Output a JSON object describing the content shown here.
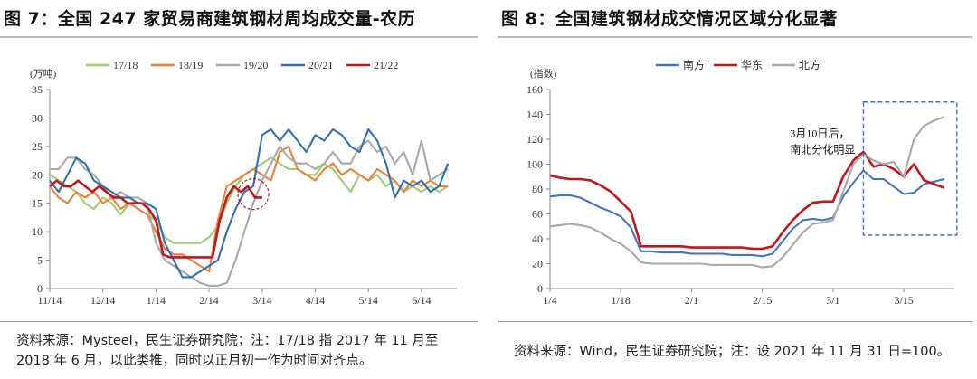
{
  "left": {
    "title": "图 7：全国 247 家贸易商建筑钢材周均成交量-农历",
    "source_line1": "资料来源：Mysteel，民生证券研究院；注：17/18 指 2017 年 11 月至",
    "source_line2": "2018 年 6 月，以此类推，同时以正月初一作为时间对齐点。"
  },
  "right": {
    "title": "图 8：全国建筑钢材成交情况区域分化显著",
    "source": "资料来源：Wind，民生证券研究院；注：设 2021 年 11 月 31 日=100。"
  },
  "chart_data": [
    {
      "type": "line",
      "ylabel": "(万吨)",
      "ylim": [
        0,
        35
      ],
      "yticks": [
        0,
        5,
        10,
        15,
        20,
        25,
        30,
        35
      ],
      "xlim": [
        0,
        230
      ],
      "xticks": [
        {
          "label": "11/14",
          "x": 0
        },
        {
          "label": "12/14",
          "x": 30
        },
        {
          "label": "1/14",
          "x": 60
        },
        {
          "label": "2/14",
          "x": 90
        },
        {
          "label": "3/14",
          "x": 120
        },
        {
          "label": "4/14",
          "x": 150
        },
        {
          "label": "5/14",
          "x": 180
        },
        {
          "label": "6/14",
          "x": 210
        }
      ],
      "legend": "top",
      "annotation": "circle around the 21/22 series near 3/14",
      "series": [
        {
          "name": "17/18",
          "color": "#9bcf6e",
          "x": [
            0,
            5,
            10,
            15,
            20,
            25,
            30,
            35,
            40,
            45,
            50,
            55,
            60,
            65,
            70,
            75,
            80,
            85,
            90,
            95,
            100,
            105,
            110,
            115,
            120,
            125,
            130,
            135,
            140,
            145,
            150,
            155,
            160,
            165,
            170,
            175,
            180,
            185,
            190,
            195,
            200,
            205,
            210,
            215,
            220,
            225
          ],
          "y": [
            20,
            19,
            18,
            17,
            15,
            14,
            16,
            15,
            13,
            15,
            14,
            13,
            12,
            9,
            8,
            8,
            8,
            8,
            9,
            11,
            15,
            18,
            20,
            21,
            22,
            23,
            22,
            21,
            21,
            20,
            20,
            22,
            21,
            19,
            17,
            20,
            19,
            20,
            18,
            19,
            17,
            18,
            17,
            18,
            17,
            18
          ]
        },
        {
          "name": "18/19",
          "color": "#f07f3a",
          "x": [
            0,
            5,
            10,
            15,
            20,
            25,
            30,
            35,
            40,
            45,
            50,
            55,
            60,
            65,
            70,
            75,
            80,
            85,
            90,
            95,
            100,
            105,
            110,
            115,
            120,
            125,
            130,
            135,
            140,
            145,
            150,
            155,
            160,
            165,
            170,
            175,
            180,
            185,
            190,
            195,
            200,
            205,
            210,
            215,
            220,
            225
          ],
          "y": [
            18,
            16,
            15,
            17,
            16,
            17,
            15,
            16,
            14,
            15,
            14,
            13,
            10,
            7,
            6,
            6,
            5,
            4,
            3,
            12,
            18,
            19,
            20,
            21,
            20,
            19,
            24,
            25,
            21,
            20,
            19,
            21,
            22,
            20,
            21,
            20,
            19,
            21,
            20,
            19,
            17,
            19,
            18,
            19,
            18,
            18
          ]
        },
        {
          "name": "19/20",
          "color": "#a9a9a9",
          "x": [
            0,
            5,
            10,
            15,
            20,
            25,
            30,
            35,
            40,
            45,
            50,
            55,
            60,
            65,
            70,
            75,
            80,
            85,
            90,
            95,
            100,
            105,
            110,
            115,
            120,
            125,
            130,
            135,
            140,
            145,
            150,
            155,
            160,
            165,
            170,
            175,
            180,
            185,
            190,
            195,
            200,
            205,
            210,
            215,
            220,
            225
          ],
          "y": [
            21,
            21,
            23,
            23,
            21,
            20,
            18,
            16,
            17,
            16,
            16,
            15,
            8,
            5,
            4,
            3,
            2,
            1,
            0.5,
            0.5,
            1,
            5,
            10,
            15,
            19,
            22,
            25,
            23,
            22,
            22,
            21,
            22,
            24,
            22,
            22,
            25,
            26,
            24,
            25,
            22,
            24,
            20,
            26,
            19,
            20,
            21
          ]
        },
        {
          "name": "20/21",
          "color": "#2f6fb4",
          "x": [
            0,
            5,
            10,
            15,
            20,
            25,
            30,
            35,
            40,
            45,
            50,
            55,
            60,
            65,
            70,
            75,
            80,
            85,
            90,
            95,
            100,
            105,
            110,
            115,
            120,
            125,
            130,
            135,
            140,
            145,
            150,
            155,
            160,
            165,
            170,
            175,
            180,
            185,
            190,
            195,
            200,
            205,
            210,
            215,
            220,
            225
          ],
          "y": [
            19,
            17,
            20,
            23,
            22,
            19,
            18,
            17,
            16,
            16,
            15,
            15,
            14,
            8,
            5,
            2,
            2,
            3,
            4,
            5,
            10,
            14,
            17,
            18,
            27,
            28,
            26,
            28,
            26,
            24,
            27,
            26,
            28,
            27,
            25,
            24,
            28,
            26,
            22,
            16,
            19,
            18,
            19,
            17,
            18,
            22
          ]
        },
        {
          "name": "21/22",
          "color": "#c0161c",
          "x": [
            0,
            4,
            8,
            12,
            16,
            20,
            24,
            28,
            32,
            36,
            40,
            44,
            48,
            52,
            56,
            60,
            64,
            68,
            72,
            76,
            80,
            84,
            88,
            92,
            96,
            100,
            104,
            108,
            112,
            116,
            120
          ],
          "y": [
            18,
            19,
            18,
            18,
            19,
            18,
            17,
            18,
            17,
            16,
            16,
            15,
            15,
            15,
            14,
            12,
            6,
            5.5,
            5.5,
            5.5,
            5.5,
            5.5,
            5.5,
            5.5,
            12,
            16,
            18,
            17,
            18,
            16,
            16
          ]
        }
      ]
    },
    {
      "type": "line",
      "ylabel": "(指数)",
      "ylim": [
        0,
        160
      ],
      "yticks": [
        0,
        20,
        40,
        60,
        80,
        100,
        120,
        140,
        160
      ],
      "xlim": [
        0,
        80
      ],
      "xticks": [
        {
          "label": "1/4",
          "x": 0
        },
        {
          "label": "1/18",
          "x": 14
        },
        {
          "label": "2/1",
          "x": 28
        },
        {
          "label": "2/15",
          "x": 42
        },
        {
          "label": "3/1",
          "x": 56
        },
        {
          "label": "3/15",
          "x": 70
        }
      ],
      "legend": "top",
      "annotation_line1": "3月10日后，",
      "annotation_line2": "南北分化明显",
      "series": [
        {
          "name": "南方",
          "color": "#4472c4",
          "x": [
            0,
            2,
            4,
            6,
            8,
            10,
            12,
            14,
            16,
            18,
            20,
            22,
            24,
            26,
            28,
            30,
            32,
            34,
            36,
            38,
            40,
            42,
            44,
            46,
            48,
            50,
            52,
            54,
            56,
            58,
            60,
            62,
            64,
            66,
            68,
            70,
            72,
            74,
            76,
            78
          ],
          "y": [
            74,
            75,
            75,
            73,
            69,
            65,
            62,
            58,
            49,
            30,
            30,
            29,
            29,
            29,
            28,
            28,
            28,
            28,
            27,
            27,
            27,
            26,
            28,
            38,
            48,
            55,
            56,
            55,
            57,
            74,
            85,
            95,
            88,
            88,
            82,
            76,
            77,
            84,
            86,
            88
          ]
        },
        {
          "name": "华东",
          "color": "#c0161c",
          "x": [
            0,
            2,
            4,
            6,
            8,
            10,
            12,
            14,
            16,
            18,
            20,
            22,
            24,
            26,
            28,
            30,
            32,
            34,
            36,
            38,
            40,
            42,
            44,
            46,
            48,
            50,
            52,
            54,
            56,
            58,
            60,
            62,
            64,
            66,
            68,
            70,
            72,
            74,
            76,
            78
          ],
          "y": [
            91,
            89,
            88,
            88,
            87,
            83,
            78,
            70,
            62,
            34,
            34,
            34,
            34,
            34,
            33,
            33,
            33,
            33,
            33,
            33,
            32,
            32,
            34,
            45,
            55,
            63,
            69,
            70,
            70,
            90,
            103,
            110,
            98,
            100,
            96,
            90,
            100,
            87,
            84,
            81
          ]
        },
        {
          "name": "北方",
          "color": "#a9a9a9",
          "x": [
            0,
            2,
            4,
            6,
            8,
            10,
            12,
            14,
            16,
            18,
            20,
            22,
            24,
            26,
            28,
            30,
            32,
            34,
            36,
            38,
            40,
            42,
            44,
            46,
            48,
            50,
            52,
            54,
            56,
            58,
            60,
            62,
            64,
            66,
            68,
            70,
            72,
            74,
            76,
            78
          ],
          "y": [
            50,
            51,
            52,
            51,
            49,
            45,
            40,
            36,
            30,
            21,
            20,
            20,
            20,
            20,
            20,
            20,
            19,
            19,
            19,
            19,
            19,
            17,
            18,
            25,
            35,
            45,
            52,
            53,
            55,
            78,
            100,
            108,
            103,
            100,
            102,
            90,
            120,
            131,
            135,
            138
          ]
        }
      ]
    }
  ]
}
